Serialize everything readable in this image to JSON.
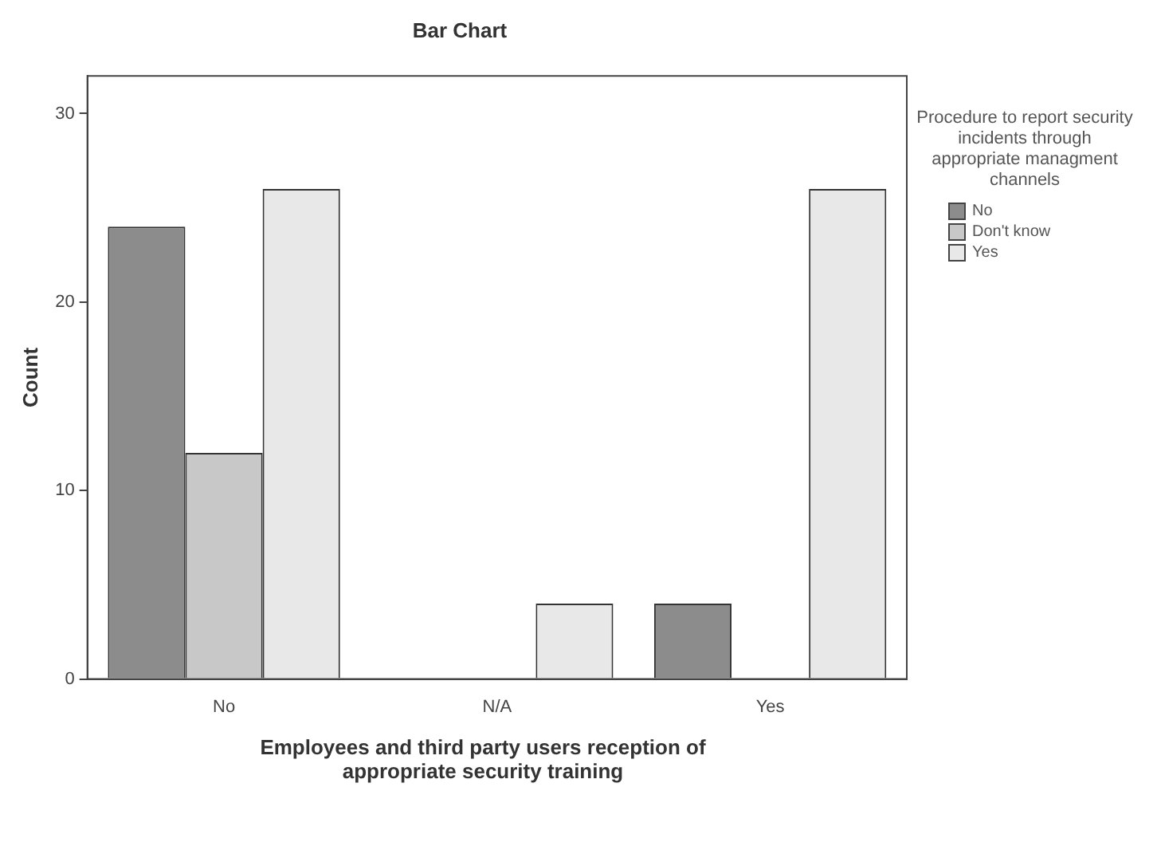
{
  "chart_data": {
    "type": "bar",
    "title": "Bar Chart",
    "xlabel": "Employees and third party users reception of appropriate security training",
    "ylabel": "Count",
    "legend_title": "Procedure to report security incidents through appropriate managment channels",
    "categories": [
      "No",
      "N/A",
      "Yes"
    ],
    "series": [
      {
        "name": "No",
        "color": "#8c8c8c",
        "values": [
          24,
          0,
          4
        ]
      },
      {
        "name": "Don't know",
        "color": "#c8c8c8",
        "values": [
          12,
          0,
          0
        ]
      },
      {
        "name": "Yes",
        "color": "#e8e8e8",
        "values": [
          26,
          4,
          26
        ]
      }
    ],
    "ylim": [
      0,
      32
    ],
    "yticks": [
      0,
      10,
      20,
      30
    ],
    "grid": false,
    "legend": "right"
  }
}
